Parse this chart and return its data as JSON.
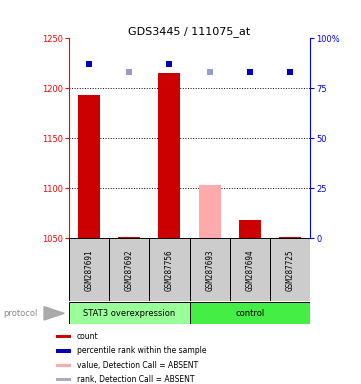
{
  "title": "GDS3445 / 111075_at",
  "samples": [
    "GSM287691",
    "GSM287692",
    "GSM287756",
    "GSM287693",
    "GSM287694",
    "GSM287725"
  ],
  "bar_values": [
    1193,
    1051,
    1215,
    1103,
    1068,
    1051
  ],
  "bar_colors": [
    "#cc0000",
    "#cc0000",
    "#cc0000",
    "#ffaaaa",
    "#cc0000",
    "#cc0000"
  ],
  "rank_values": [
    87,
    83,
    87,
    83,
    83,
    83
  ],
  "rank_colors": [
    "#0000bb",
    "#9999cc",
    "#0000bb",
    "#9999cc",
    "#0000bb",
    "#0000bb"
  ],
  "bar_bottom": 1050,
  "ylim_left": [
    1050,
    1250
  ],
  "ylim_right": [
    0,
    100
  ],
  "yticks_left": [
    1050,
    1100,
    1150,
    1200,
    1250
  ],
  "yticks_right": [
    0,
    25,
    50,
    75,
    100
  ],
  "ytick_labels_right": [
    "0",
    "25",
    "50",
    "75",
    "100%"
  ],
  "grid_lines": [
    1100,
    1150,
    1200
  ],
  "groups": [
    {
      "label": "STAT3 overexpression",
      "start": 0,
      "end": 3,
      "color": "#99ff99"
    },
    {
      "label": "control",
      "start": 3,
      "end": 6,
      "color": "#44ee44"
    }
  ],
  "protocol_label": "protocol",
  "legend_items": [
    {
      "color": "#cc0000",
      "label": "count"
    },
    {
      "color": "#0000bb",
      "label": "percentile rank within the sample"
    },
    {
      "color": "#ffaaaa",
      "label": "value, Detection Call = ABSENT"
    },
    {
      "color": "#aaaacc",
      "label": "rank, Detection Call = ABSENT"
    }
  ],
  "bg_color": "#ffffff",
  "sample_box_color": "#cccccc",
  "title_fontsize": 8,
  "tick_fontsize": 6,
  "sample_fontsize": 5.5,
  "proto_fontsize": 6,
  "legend_fontsize": 5.5
}
